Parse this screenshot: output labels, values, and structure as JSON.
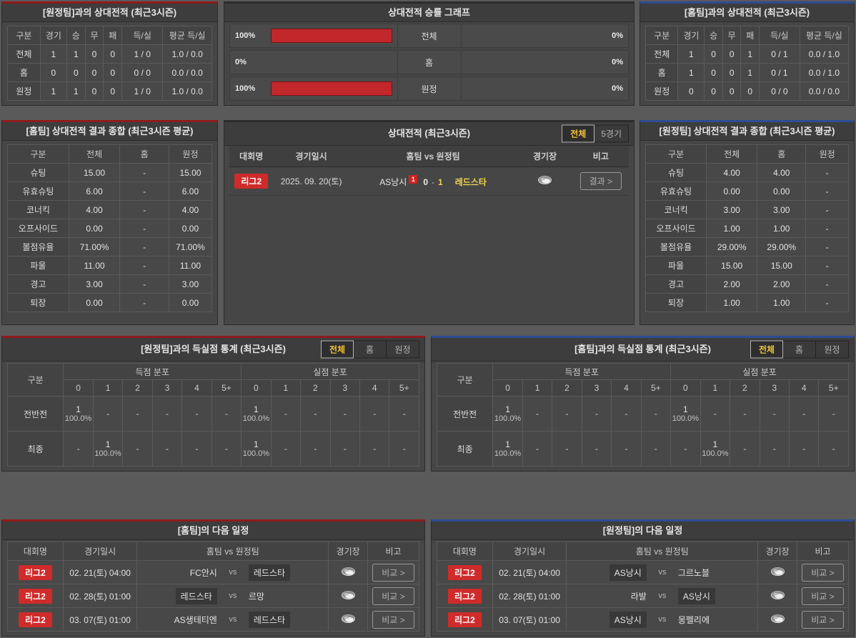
{
  "shared": {
    "vs": "vs"
  },
  "colors": {
    "accent_red": "#8e1b1b",
    "accent_blue": "#2d4c94",
    "bar_red": "#c2272b",
    "badge_red": "#cf2b2b",
    "tab_active_gold": "#f3c237",
    "team_yellow": "#ecd54d"
  },
  "panels": {
    "h2h_away": {
      "title": "[원정팀]과의 상대전적 (최근3시즌)",
      "columns": [
        "구분",
        "경기",
        "승",
        "무",
        "패",
        "득/실",
        "평균 득/실"
      ],
      "rows": [
        {
          "label": "전체",
          "cells": [
            "1",
            "1",
            "0",
            "0",
            "1 / 0",
            "1.0 / 0.0"
          ]
        },
        {
          "label": "홈",
          "cells": [
            "0",
            "0",
            "0",
            "0",
            "0 / 0",
            "0.0 / 0.0"
          ]
        },
        {
          "label": "원정",
          "cells": [
            "1",
            "1",
            "0",
            "0",
            "1 / 0",
            "1.0 / 0.0"
          ]
        }
      ]
    },
    "winrate_chart": {
      "title": "상대전적 승률 그래프",
      "rows": [
        {
          "label": "전체",
          "left_label": "100%",
          "left_pct": 100,
          "right_label": "0%",
          "right_pct": 0
        },
        {
          "label": "홈",
          "left_label": "0%",
          "left_pct": 0,
          "right_label": "0%",
          "right_pct": 0
        },
        {
          "label": "원정",
          "left_label": "100%",
          "left_pct": 100,
          "right_label": "0%",
          "right_pct": 0
        }
      ]
    },
    "h2h_home": {
      "title": "[홈팀]과의 상대전적 (최근3시즌)",
      "columns": [
        "구분",
        "경기",
        "승",
        "무",
        "패",
        "득/실",
        "평균 득/실"
      ],
      "rows": [
        {
          "label": "전체",
          "cells": [
            "1",
            "0",
            "0",
            "1",
            "0 / 1",
            "0.0 / 1.0"
          ]
        },
        {
          "label": "홈",
          "cells": [
            "1",
            "0",
            "0",
            "1",
            "0 / 1",
            "0.0 / 1.0"
          ]
        },
        {
          "label": "원정",
          "cells": [
            "0",
            "0",
            "0",
            "0",
            "0 / 0",
            "0.0 / 0.0"
          ]
        }
      ]
    },
    "summary_home": {
      "title": "[홈팀] 상대전적 결과 종합 (최근3시즌 평균)",
      "columns": [
        "구분",
        "전체",
        "홈",
        "원정"
      ],
      "rows": [
        {
          "label": "슈팅",
          "cells": [
            "15.00",
            "-",
            "15.00"
          ]
        },
        {
          "label": "유효슈팅",
          "cells": [
            "6.00",
            "-",
            "6.00"
          ]
        },
        {
          "label": "코너킥",
          "cells": [
            "4.00",
            "-",
            "4.00"
          ]
        },
        {
          "label": "오프사이드",
          "cells": [
            "0.00",
            "-",
            "0.00"
          ]
        },
        {
          "label": "볼점유율",
          "cells": [
            "71.00%",
            "-",
            "71.00%"
          ]
        },
        {
          "label": "파울",
          "cells": [
            "11.00",
            "-",
            "11.00"
          ]
        },
        {
          "label": "경고",
          "cells": [
            "3.00",
            "-",
            "3.00"
          ]
        },
        {
          "label": "퇴장",
          "cells": [
            "0.00",
            "-",
            "0.00"
          ]
        }
      ]
    },
    "h2h_list": {
      "title": "상대전적 (최근3시즌)",
      "tabs": [
        "전체",
        "5경기"
      ],
      "active_tab": 0,
      "columns": [
        "대회명",
        "경기일시",
        "홈팀 vs 원정팀",
        "경기장",
        "비고"
      ],
      "match": {
        "league": "리그2",
        "datetime": "2025. 09. 20(토)",
        "home": "AS낭시",
        "home_cards": "1",
        "home_score": "0",
        "score_dash": "-",
        "away_score": "1",
        "away": "레드스타",
        "button": "결과 >"
      }
    },
    "summary_away": {
      "title": "[원정팀] 상대전적 결과 종합 (최근3시즌 평균)",
      "columns": [
        "구분",
        "전체",
        "홈",
        "원정"
      ],
      "rows": [
        {
          "label": "슈팅",
          "cells": [
            "4.00",
            "4.00",
            "-"
          ]
        },
        {
          "label": "유효슈팅",
          "cells": [
            "0.00",
            "0.00",
            "-"
          ]
        },
        {
          "label": "코너킥",
          "cells": [
            "3.00",
            "3.00",
            "-"
          ]
        },
        {
          "label": "오프사이드",
          "cells": [
            "1.00",
            "1.00",
            "-"
          ]
        },
        {
          "label": "볼점유율",
          "cells": [
            "29.00%",
            "29.00%",
            "-"
          ]
        },
        {
          "label": "파울",
          "cells": [
            "15.00",
            "15.00",
            "-"
          ]
        },
        {
          "label": "경고",
          "cells": [
            "2.00",
            "2.00",
            "-"
          ]
        },
        {
          "label": "퇴장",
          "cells": [
            "1.00",
            "1.00",
            "-"
          ]
        }
      ]
    },
    "goal_stats_left": {
      "title": "[원정팀]과의 득실점 통계 (최근3시즌)",
      "tabs": [
        "전체",
        "홈",
        "원정"
      ],
      "active_tab": 0,
      "col_label": "구분",
      "groups": [
        "득점 분포",
        "실점 분포"
      ],
      "score_cols": [
        "0",
        "1",
        "2",
        "3",
        "4",
        "5+"
      ],
      "rows": [
        {
          "label": "전반전",
          "scored": [
            "1|100.0%",
            "-",
            "-",
            "-",
            "-",
            "-"
          ],
          "conceded": [
            "1|100.0%",
            "-",
            "-",
            "-",
            "-",
            "-"
          ]
        },
        {
          "label": "최종",
          "scored": [
            "-",
            "1|100.0%",
            "-",
            "-",
            "-",
            "-"
          ],
          "conceded": [
            "1|100.0%",
            "-",
            "-",
            "-",
            "-",
            "-"
          ]
        }
      ]
    },
    "goal_stats_right": {
      "title": "[홈팀]과의 득실점 통계 (최근3시즌)",
      "tabs": [
        "전체",
        "홈",
        "원정"
      ],
      "active_tab": 0,
      "col_label": "구분",
      "groups": [
        "득점 분포",
        "실점 분포"
      ],
      "score_cols": [
        "0",
        "1",
        "2",
        "3",
        "4",
        "5+"
      ],
      "rows": [
        {
          "label": "전반전",
          "scored": [
            "1|100.0%",
            "-",
            "-",
            "-",
            "-",
            "-"
          ],
          "conceded": [
            "1|100.0%",
            "-",
            "-",
            "-",
            "-",
            "-"
          ]
        },
        {
          "label": "최종",
          "scored": [
            "1|100.0%",
            "-",
            "-",
            "-",
            "-",
            "-"
          ],
          "conceded": [
            "-",
            "1|100.0%",
            "-",
            "-",
            "-",
            "-"
          ]
        }
      ]
    },
    "schedule_home": {
      "title": "[홈팀]의 다음 일정",
      "columns": [
        "대회명",
        "경기일시",
        "홈팀 vs 원정팀",
        "경기장",
        "비고"
      ],
      "rows": [
        {
          "league": "리그2",
          "datetime": "02. 21(토) 04:00",
          "home": "FC안시",
          "away": "레드스타",
          "highlight": "away",
          "button": "비교 >"
        },
        {
          "league": "리그2",
          "datetime": "02. 28(토) 01:00",
          "home": "레드스타",
          "away": "르망",
          "highlight": "home",
          "button": "비교 >"
        },
        {
          "league": "리그2",
          "datetime": "03. 07(토) 01:00",
          "home": "AS생테티엔",
          "away": "레드스타",
          "highlight": "away",
          "button": "비교 >"
        }
      ]
    },
    "schedule_away": {
      "title": "[원정팀]의 다음 일정",
      "columns": [
        "대회명",
        "경기일시",
        "홈팀 vs 원정팀",
        "경기장",
        "비고"
      ],
      "rows": [
        {
          "league": "리그2",
          "datetime": "02. 21(토) 04:00",
          "home": "AS낭시",
          "away": "그르노블",
          "highlight": "home",
          "button": "비교 >"
        },
        {
          "league": "리그2",
          "datetime": "02. 28(토) 01:00",
          "home": "라발",
          "away": "AS낭시",
          "highlight": "away",
          "button": "비교 >"
        },
        {
          "league": "리그2",
          "datetime": "03. 07(토) 01:00",
          "home": "AS낭시",
          "away": "몽펠리에",
          "highlight": "home",
          "button": "비교 >"
        }
      ]
    }
  },
  "chart_data": {
    "type": "bar",
    "orientation": "horizontal",
    "title": "상대전적 승률 그래프",
    "categories": [
      "전체",
      "홈",
      "원정"
    ],
    "series": [
      {
        "name": "left_win_rate",
        "values": [
          100,
          0,
          100
        ]
      },
      {
        "name": "right_win_rate",
        "values": [
          0,
          0,
          0
        ]
      }
    ],
    "unit": "%",
    "xlim": [
      0,
      100
    ],
    "bar_color": "#c2272b",
    "legend": false
  }
}
